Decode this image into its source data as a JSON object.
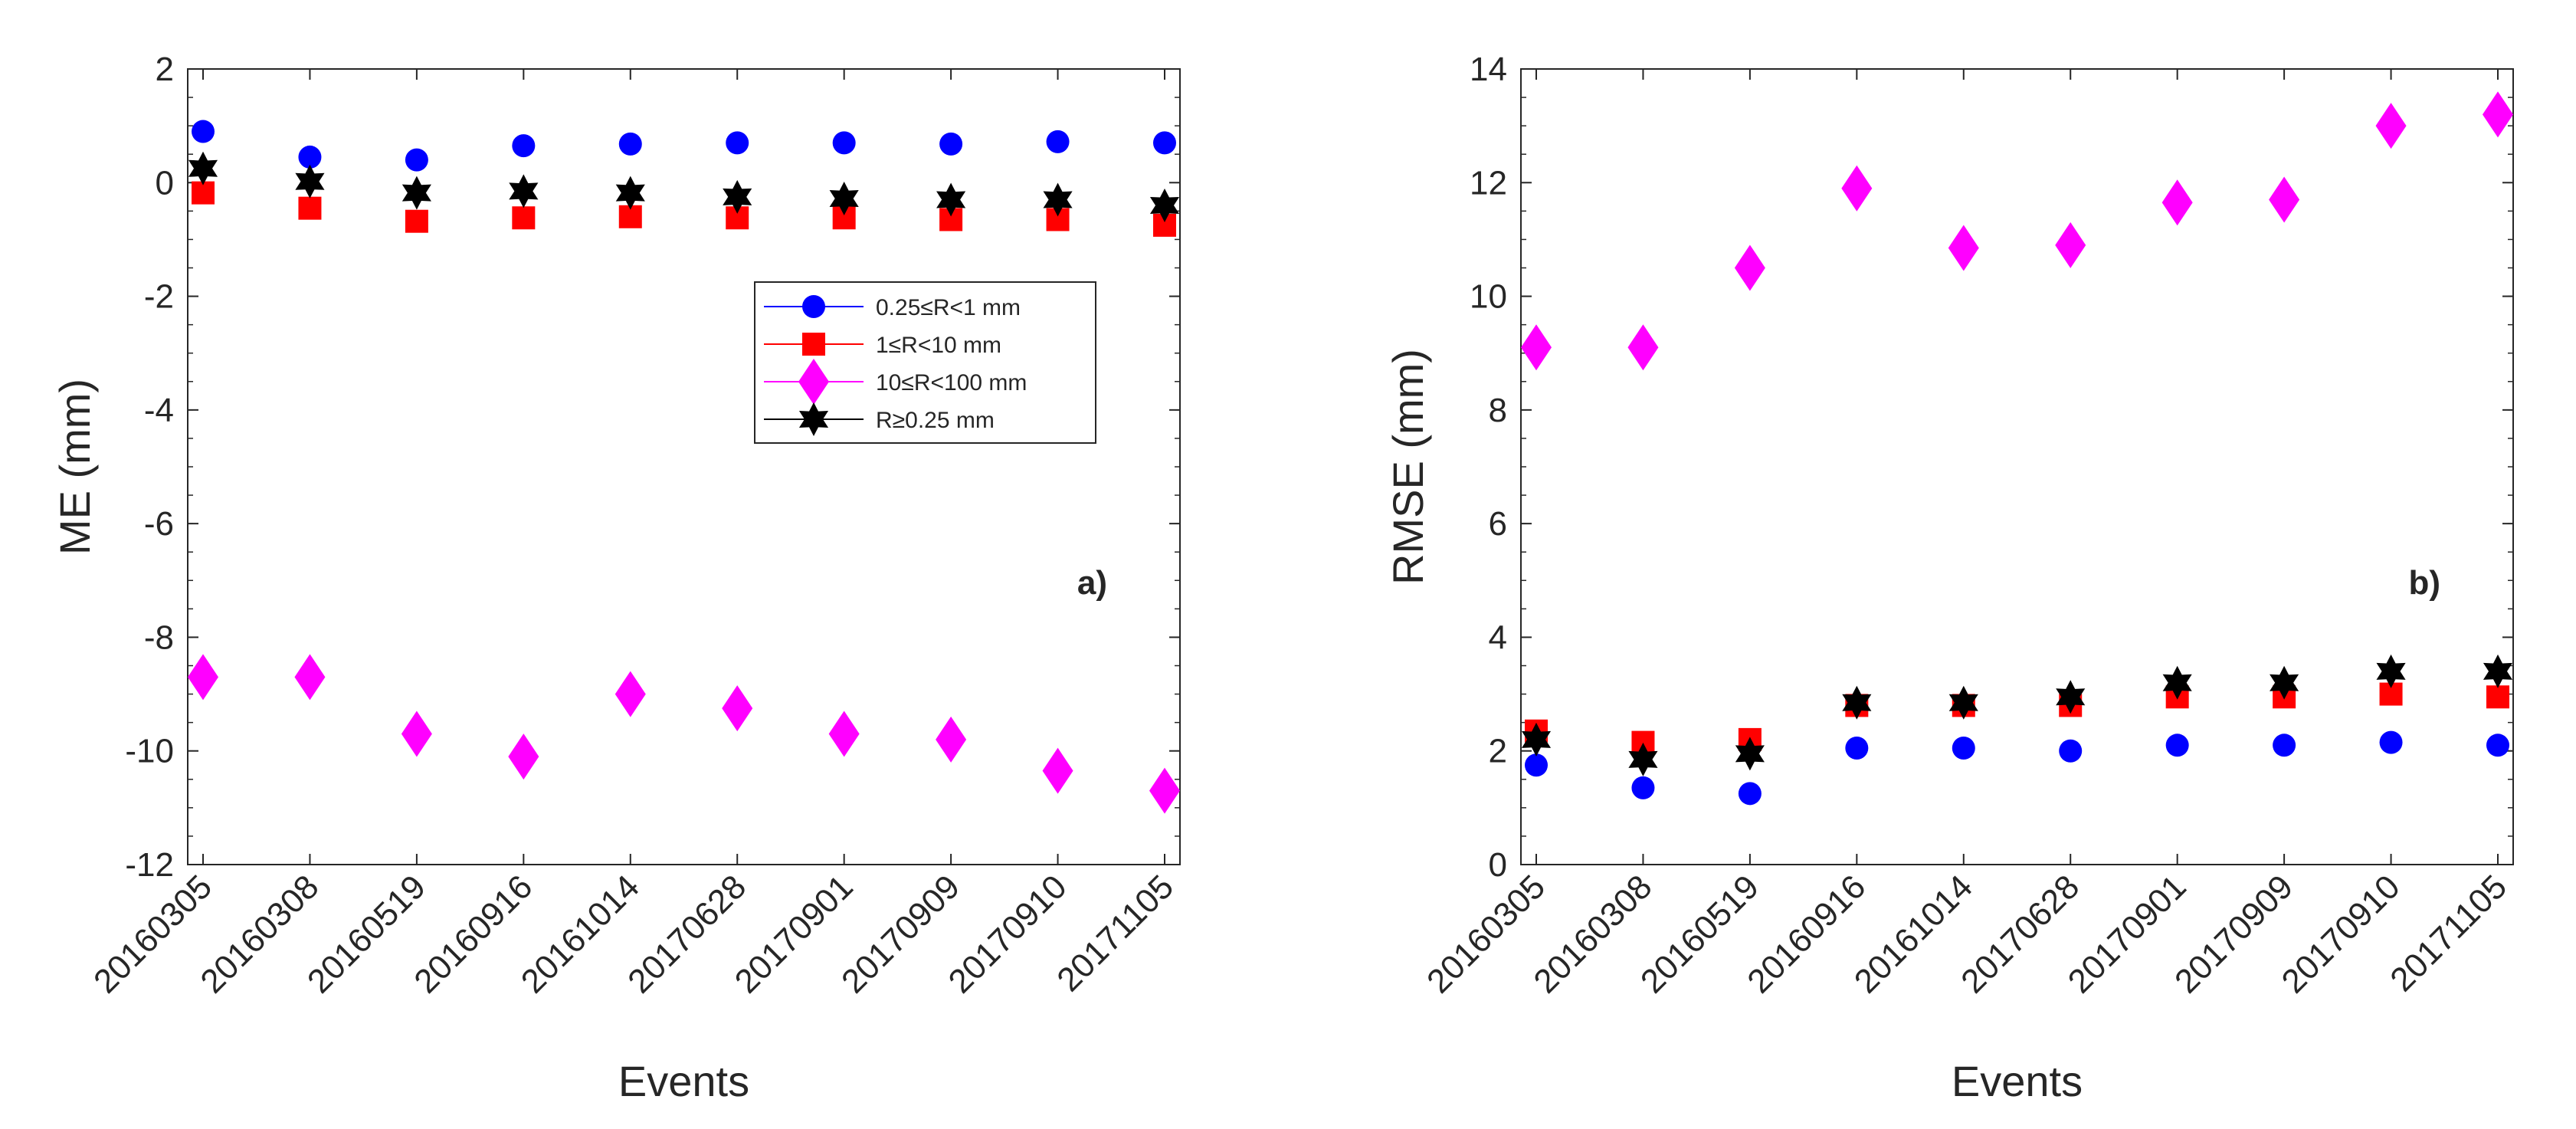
{
  "chart_data": [
    {
      "type": "scatter",
      "panel": "a)",
      "title": "",
      "xlabel": "Events",
      "ylabel": "ME (mm)",
      "ylim": [
        -12,
        2
      ],
      "yticks": [
        2,
        0,
        -2,
        -4,
        -6,
        -8,
        -10,
        -12
      ],
      "categories": [
        "20160305",
        "20160308",
        "20160519",
        "20160916",
        "20161014",
        "20170628",
        "20170901",
        "20170909",
        "20170910",
        "20171105"
      ],
      "series": [
        {
          "name": "0.25≤R<1 mm",
          "values": [
            0.9,
            0.45,
            0.4,
            0.65,
            0.68,
            0.7,
            0.7,
            0.68,
            0.72,
            0.7
          ]
        },
        {
          "name": "1≤R<10 mm",
          "values": [
            -0.18,
            -0.45,
            -0.68,
            -0.62,
            -0.6,
            -0.62,
            -0.62,
            -0.65,
            -0.65,
            -0.75
          ]
        },
        {
          "name": "10≤R<100 mm",
          "values": [
            -8.7,
            -8.7,
            -9.7,
            -10.1,
            -9.0,
            -9.25,
            -9.7,
            -9.8,
            -10.35,
            -10.7
          ]
        },
        {
          "name": "R≥0.25 mm",
          "values": [
            0.25,
            0.02,
            -0.18,
            -0.15,
            -0.18,
            -0.25,
            -0.28,
            -0.3,
            -0.3,
            -0.4
          ]
        }
      ],
      "legend": "inside-right"
    },
    {
      "type": "scatter",
      "panel": "b)",
      "title": "",
      "xlabel": "Events",
      "ylabel": "RMSE (mm)",
      "ylim": [
        0,
        14
      ],
      "yticks": [
        14,
        12,
        10,
        8,
        6,
        4,
        2,
        0
      ],
      "categories": [
        "20160305",
        "20160308",
        "20160519",
        "20160916",
        "20161014",
        "20170628",
        "20170901",
        "20170909",
        "20170910",
        "20171105"
      ],
      "series": [
        {
          "name": "0.25≤R<1 mm",
          "values": [
            1.75,
            1.35,
            1.25,
            2.05,
            2.05,
            2.0,
            2.1,
            2.1,
            2.15,
            2.1
          ]
        },
        {
          "name": "1≤R<10 mm",
          "values": [
            2.35,
            2.15,
            2.2,
            2.8,
            2.8,
            2.8,
            2.95,
            2.95,
            3.0,
            2.95
          ]
        },
        {
          "name": "10≤R<100 mm",
          "values": [
            9.1,
            9.1,
            10.5,
            11.9,
            10.85,
            10.9,
            11.65,
            11.7,
            13.0,
            13.2
          ]
        },
        {
          "name": "R≥0.25 mm",
          "values": [
            2.2,
            1.85,
            1.95,
            2.85,
            2.85,
            2.95,
            3.2,
            3.2,
            3.4,
            3.4
          ]
        }
      ]
    }
  ],
  "colors": {
    "series": [
      "#0000ff",
      "#ff0000",
      "#ff00ff",
      "#000000"
    ],
    "axis": "#262626"
  },
  "icons": [
    "circle-marker-icon",
    "square-marker-icon",
    "diamond-marker-icon",
    "hexagram-marker-icon"
  ]
}
